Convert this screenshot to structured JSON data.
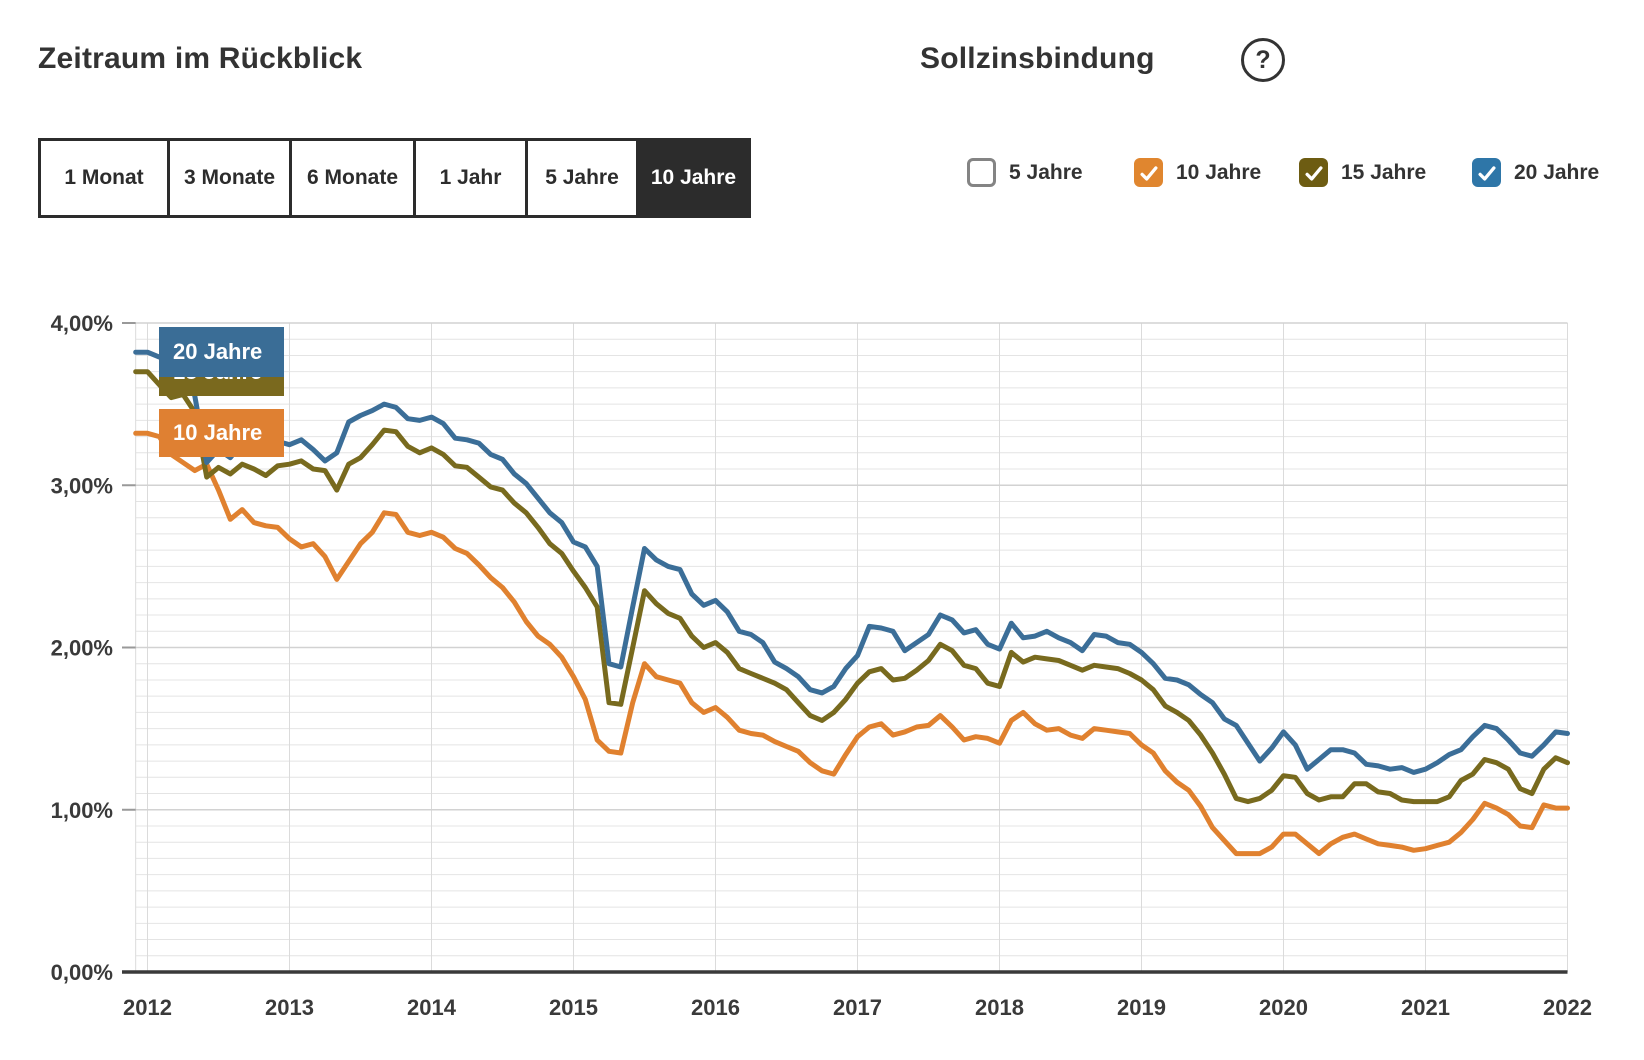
{
  "header": {
    "left_title": "Zeitraum im Rückblick",
    "right_title": "Sollzinsbindung",
    "help_icon": "?"
  },
  "period_tabs": {
    "options": [
      {
        "label": "1 Monat",
        "selected": false
      },
      {
        "label": "3 Monate",
        "selected": false
      },
      {
        "label": "6 Monate",
        "selected": false
      },
      {
        "label": "1 Jahr",
        "selected": false
      },
      {
        "label": "5 Jahre",
        "selected": false
      },
      {
        "label": "10 Jahre",
        "selected": true
      }
    ]
  },
  "binding_filters": {
    "items": [
      {
        "label": "5 Jahre",
        "checked": false,
        "color": "#848484"
      },
      {
        "label": "10 Jahre",
        "checked": true,
        "color": "#e0862f"
      },
      {
        "label": "15 Jahre",
        "checked": true,
        "color": "#6d5c12"
      },
      {
        "label": "20 Jahre",
        "checked": true,
        "color": "#2e76a8"
      }
    ]
  },
  "chart_data": {
    "type": "line",
    "title": "",
    "xlabel": "",
    "ylabel": "",
    "x_unit": "month",
    "x_start": "2012-01",
    "x_end": "2022-01",
    "ylim": [
      0,
      4
    ],
    "grid": {
      "minor_step_pct": 0.1,
      "major_step_pct": 1.0
    },
    "legend_position": "chips-top-left",
    "x_ticks": [
      "2012",
      "2013",
      "2014",
      "2015",
      "2016",
      "2017",
      "2018",
      "2019",
      "2020",
      "2021",
      "2022"
    ],
    "y_ticks": [
      {
        "label": "4,00%",
        "value": 4
      },
      {
        "label": "3,00%",
        "value": 3
      },
      {
        "label": "2,00%",
        "value": 2
      },
      {
        "label": "1,00%",
        "value": 1
      },
      {
        "label": "0,00%",
        "value": 0
      }
    ],
    "series": [
      {
        "name": "10 Jahre",
        "color": "#e0812f",
        "chip": true,
        "values": [
          3.32,
          3.3,
          3.19,
          3.14,
          3.09,
          3.13,
          2.97,
          2.79,
          2.85,
          2.77,
          2.75,
          2.74,
          2.67,
          2.62,
          2.64,
          2.56,
          2.42,
          2.53,
          2.64,
          2.71,
          2.83,
          2.82,
          2.71,
          2.69,
          2.71,
          2.68,
          2.61,
          2.58,
          2.51,
          2.43,
          2.37,
          2.28,
          2.16,
          2.07,
          2.02,
          1.94,
          1.82,
          1.68,
          1.43,
          1.36,
          1.35,
          1.66,
          1.9,
          1.82,
          1.8,
          1.78,
          1.66,
          1.6,
          1.63,
          1.57,
          1.49,
          1.47,
          1.46,
          1.42,
          1.39,
          1.36,
          1.29,
          1.24,
          1.22,
          1.34,
          1.45,
          1.51,
          1.53,
          1.46,
          1.48,
          1.51,
          1.52,
          1.58,
          1.51,
          1.43,
          1.45,
          1.44,
          1.41,
          1.55,
          1.6,
          1.53,
          1.49,
          1.5,
          1.46,
          1.44,
          1.5,
          1.49,
          1.48,
          1.47,
          1.4,
          1.35,
          1.24,
          1.17,
          1.12,
          1.02,
          0.89,
          0.81,
          0.73,
          0.73,
          0.73,
          0.77,
          0.85,
          0.85,
          0.79,
          0.73,
          0.79,
          0.83,
          0.85,
          0.82,
          0.79,
          0.78,
          0.77,
          0.75,
          0.76,
          0.78,
          0.8,
          0.86,
          0.94,
          1.04,
          1.01,
          0.97,
          0.9,
          0.89,
          1.03,
          1.01,
          1.01
        ]
      },
      {
        "name": "15 Jahre",
        "color": "#786a1e",
        "chip": true,
        "values": [
          3.7,
          3.62,
          3.54,
          3.56,
          3.45,
          3.05,
          3.11,
          3.07,
          3.13,
          3.1,
          3.06,
          3.12,
          3.13,
          3.15,
          3.1,
          3.09,
          2.97,
          3.13,
          3.17,
          3.25,
          3.34,
          3.33,
          3.24,
          3.2,
          3.23,
          3.19,
          3.12,
          3.11,
          3.05,
          2.99,
          2.97,
          2.89,
          2.83,
          2.74,
          2.64,
          2.58,
          2.47,
          2.37,
          2.25,
          1.66,
          1.65,
          2.0,
          2.35,
          2.27,
          2.21,
          2.18,
          2.07,
          2.0,
          2.03,
          1.97,
          1.87,
          1.84,
          1.81,
          1.78,
          1.74,
          1.66,
          1.58,
          1.55,
          1.6,
          1.68,
          1.78,
          1.85,
          1.87,
          1.8,
          1.81,
          1.86,
          1.92,
          2.02,
          1.98,
          1.89,
          1.87,
          1.78,
          1.76,
          1.97,
          1.91,
          1.94,
          1.93,
          1.92,
          1.89,
          1.86,
          1.89,
          1.88,
          1.87,
          1.84,
          1.8,
          1.74,
          1.64,
          1.6,
          1.55,
          1.46,
          1.35,
          1.22,
          1.07,
          1.05,
          1.07,
          1.12,
          1.21,
          1.2,
          1.1,
          1.06,
          1.08,
          1.08,
          1.16,
          1.16,
          1.11,
          1.1,
          1.06,
          1.05,
          1.05,
          1.05,
          1.08,
          1.18,
          1.22,
          1.31,
          1.29,
          1.25,
          1.13,
          1.1,
          1.25,
          1.32,
          1.29
        ]
      },
      {
        "name": "20 Jahre",
        "color": "#3b6e98",
        "chip": true,
        "values": [
          3.82,
          3.79,
          3.82,
          3.76,
          3.55,
          3.14,
          3.22,
          3.17,
          3.26,
          3.29,
          3.21,
          3.27,
          3.25,
          3.28,
          3.22,
          3.15,
          3.2,
          3.39,
          3.43,
          3.46,
          3.5,
          3.48,
          3.41,
          3.4,
          3.42,
          3.38,
          3.29,
          3.28,
          3.26,
          3.19,
          3.16,
          3.07,
          3.01,
          2.92,
          2.83,
          2.77,
          2.65,
          2.62,
          2.5,
          1.9,
          1.88,
          2.25,
          2.61,
          2.54,
          2.5,
          2.48,
          2.33,
          2.26,
          2.29,
          2.22,
          2.1,
          2.08,
          2.03,
          1.91,
          1.87,
          1.82,
          1.74,
          1.72,
          1.76,
          1.87,
          1.95,
          2.13,
          2.12,
          2.1,
          1.98,
          2.03,
          2.08,
          2.2,
          2.17,
          2.09,
          2.11,
          2.02,
          1.99,
          2.15,
          2.06,
          2.07,
          2.1,
          2.06,
          2.03,
          1.98,
          2.08,
          2.07,
          2.03,
          2.02,
          1.97,
          1.9,
          1.81,
          1.8,
          1.77,
          1.71,
          1.66,
          1.56,
          1.52,
          1.41,
          1.3,
          1.38,
          1.48,
          1.4,
          1.25,
          1.31,
          1.37,
          1.37,
          1.35,
          1.28,
          1.27,
          1.25,
          1.26,
          1.23,
          1.25,
          1.29,
          1.34,
          1.37,
          1.45,
          1.52,
          1.5,
          1.43,
          1.35,
          1.33,
          1.4,
          1.48,
          1.47
        ]
      }
    ]
  }
}
